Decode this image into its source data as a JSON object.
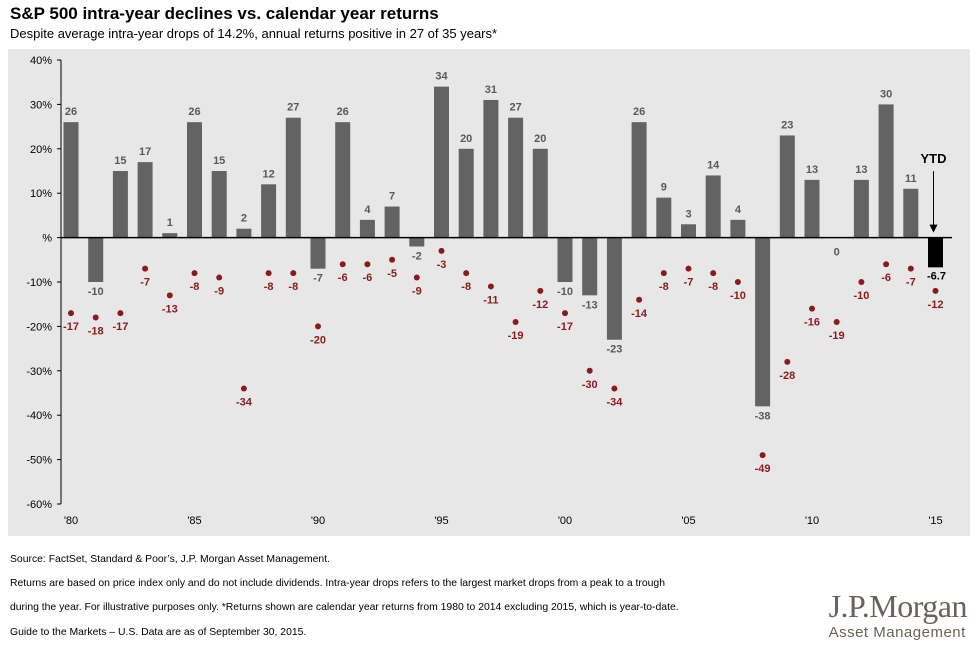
{
  "title": "S&P 500 intra-year declines vs. calendar year returns",
  "subtitle": "Despite average intra-year drops of 14.2%, annual returns positive in 27 of 35 years*",
  "source_lines": [
    "Source: FactSet, Standard & Poor’s, J.P. Morgan Asset Management.",
    "Returns are based on price index only and do not include dividends. Intra-year drops refers to the largest market drops from a peak to a trough",
    "during the year. For illustrative purposes only. *Returns shown are calendar year returns from 1980 to 2014 excluding 2015, which is year-to-date.",
    "Guide to the Markets – U.S. Data are as of September 30, 2015."
  ],
  "logo": {
    "main": "J.P.Morgan",
    "sub": "Asset Management"
  },
  "colors": {
    "bar": "#636363",
    "ytd_bar": "#000000",
    "dot": "#8b1a1a",
    "label": "#595959",
    "dot_label": "#8b1a1a",
    "panel": "#e7e7e7"
  },
  "chart_data": {
    "type": "bar",
    "years": [
      1980,
      1981,
      1982,
      1983,
      1984,
      1985,
      1986,
      1987,
      1988,
      1989,
      1990,
      1991,
      1992,
      1993,
      1994,
      1995,
      1996,
      1997,
      1998,
      1999,
      2000,
      2001,
      2002,
      2003,
      2004,
      2005,
      2006,
      2007,
      2008,
      2009,
      2010,
      2011,
      2012,
      2013,
      2014,
      2015
    ],
    "returns": [
      26,
      -10,
      15,
      17,
      1,
      26,
      15,
      2,
      12,
      27,
      -7,
      26,
      4,
      7,
      -2,
      34,
      20,
      31,
      27,
      20,
      -10,
      -13,
      -23,
      26,
      9,
      3,
      14,
      4,
      -38,
      23,
      13,
      0,
      13,
      30,
      11,
      -6.7
    ],
    "return_labels": [
      "26",
      "-10",
      "15",
      "17",
      "1",
      "26",
      "15",
      "2",
      "12",
      "27",
      "-7",
      "26",
      "4",
      "7",
      "-2",
      "34",
      "20",
      "31",
      "27",
      "20",
      "-10",
      "-13",
      "-23",
      "26",
      "9",
      "3",
      "14",
      "4",
      "-38",
      "23",
      "13",
      "0",
      "13",
      "30",
      "11",
      "-6.7"
    ],
    "intra_year_declines": [
      -17,
      -18,
      -17,
      -7,
      -13,
      -8,
      -9,
      -34,
      -8,
      -8,
      -20,
      -6,
      -6,
      -5,
      -9,
      -3,
      -8,
      -11,
      -19,
      -12,
      -17,
      -30,
      -34,
      -14,
      -8,
      -7,
      -8,
      -10,
      -49,
      -28,
      -16,
      -19,
      -10,
      -6,
      -7,
      -12
    ],
    "ylim": [
      -60,
      40
    ],
    "yticks": [
      40,
      30,
      20,
      10,
      0,
      -10,
      -20,
      -30,
      -40,
      -50,
      -60
    ],
    "ytick_labels": [
      "40%",
      "30%",
      "20%",
      "10%",
      "%",
      "-10%",
      "-20%",
      "-30%",
      "-40%",
      "-50%",
      "-60%"
    ],
    "xtick_years": [
      1980,
      1985,
      1990,
      1995,
      2000,
      2005,
      2010,
      2015
    ],
    "xtick_labels": [
      "'80",
      "'85",
      "'90",
      "'95",
      "'00",
      "'05",
      "'10",
      "'15"
    ],
    "ytd_label": "YTD",
    "series": [
      {
        "name": "",
        "type": "bar"
      },
      {
        "name": "",
        "type": "scatter"
      }
    ]
  }
}
